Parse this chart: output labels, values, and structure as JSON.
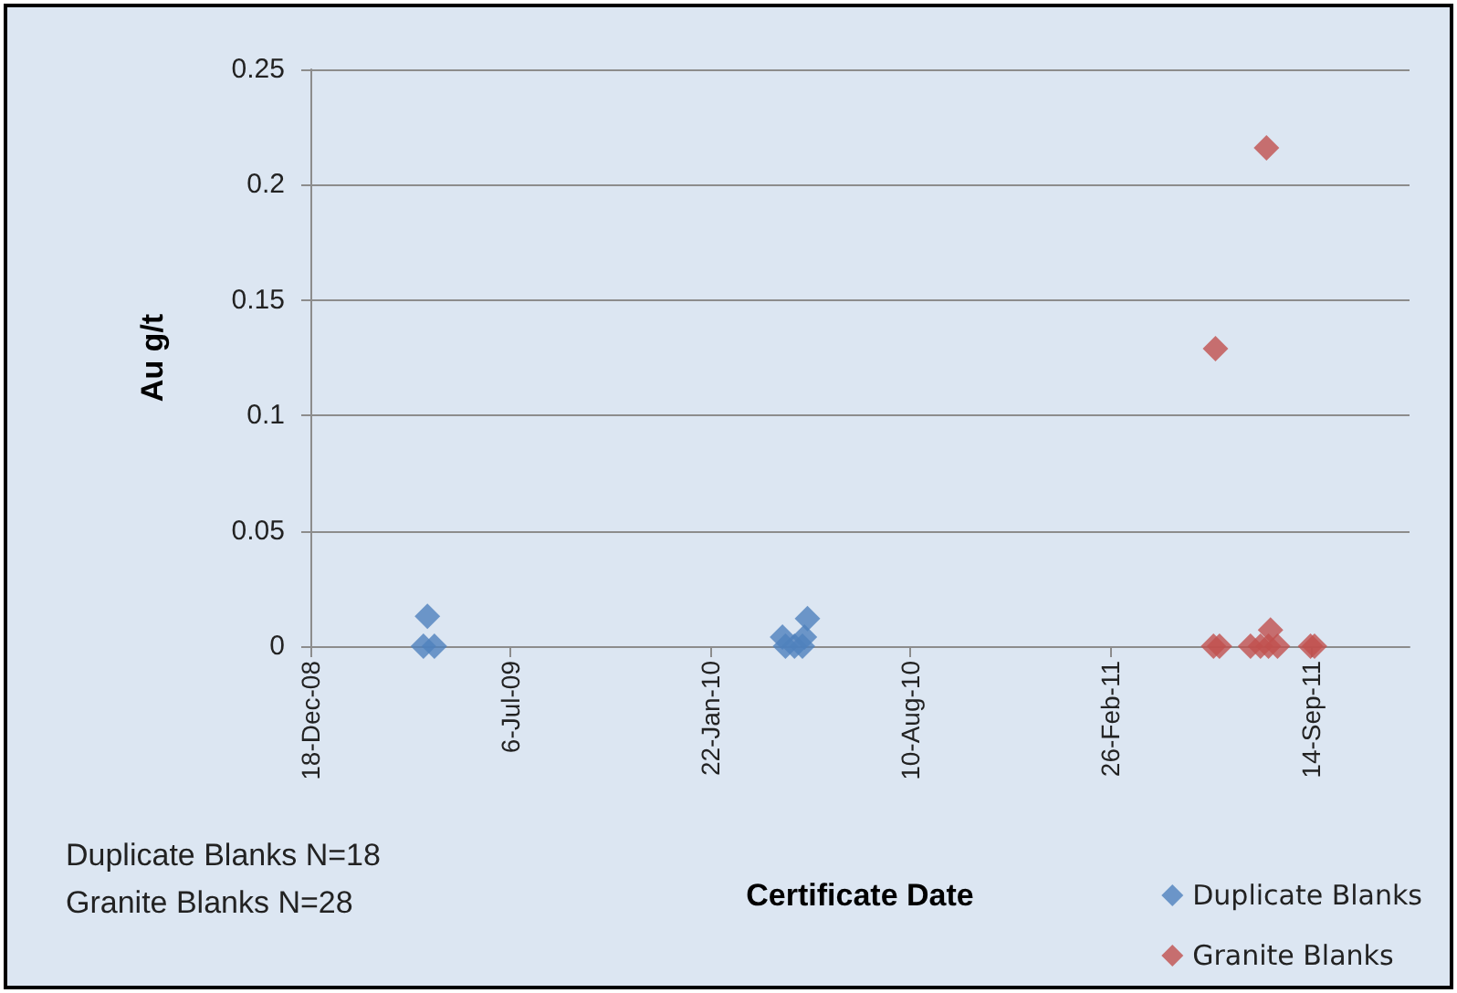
{
  "chart_data": {
    "type": "scatter",
    "xlabel": "Certificate Date",
    "ylabel": "Au g/t",
    "annotations": [
      "Duplicate Blanks N=18",
      "Granite Blanks N=28"
    ],
    "xlim": [
      "2008-12-18",
      "2011-12-22"
    ],
    "xticks": [
      {
        "value": "2008-12-18",
        "label": "18-Dec-08"
      },
      {
        "value": "2009-07-06",
        "label": "6-Jul-09"
      },
      {
        "value": "2010-01-22",
        "label": "22-Jan-10"
      },
      {
        "value": "2010-08-10",
        "label": "10-Aug-10"
      },
      {
        "value": "2011-02-26",
        "label": "26-Feb-11"
      },
      {
        "value": "2011-09-14",
        "label": "14-Sep-11"
      }
    ],
    "ylim": [
      0,
      0.25
    ],
    "yticks": [
      0,
      0.05,
      0.1,
      0.15,
      0.2,
      0.25
    ],
    "grid": "y",
    "legend": "bottom right",
    "marker": "diamond",
    "series": [
      {
        "name": "Duplicate Blanks",
        "color": "#4f81bd",
        "x": [
          "2009-04-14",
          "2009-04-10",
          "2009-04-21",
          "2010-04-04",
          "2010-04-07",
          "2010-04-16",
          "2010-04-24",
          "2010-04-26",
          "2010-04-29"
        ],
        "values": [
          0.013,
          0,
          0,
          0.004,
          0,
          0,
          0,
          0.004,
          0.012
        ]
      },
      {
        "name": "Granite Blanks",
        "color": "#c0504d",
        "x": [
          "2011-06-11",
          "2011-08-01",
          "2011-06-09",
          "2011-06-15",
          "2011-07-16",
          "2011-07-26",
          "2011-07-30",
          "2011-08-03",
          "2011-08-05",
          "2011-08-12",
          "2011-09-14",
          "2011-09-18"
        ],
        "values": [
          0.129,
          0.216,
          0,
          0,
          0,
          0,
          null,
          0,
          0.007,
          0,
          0,
          0
        ]
      }
    ]
  }
}
